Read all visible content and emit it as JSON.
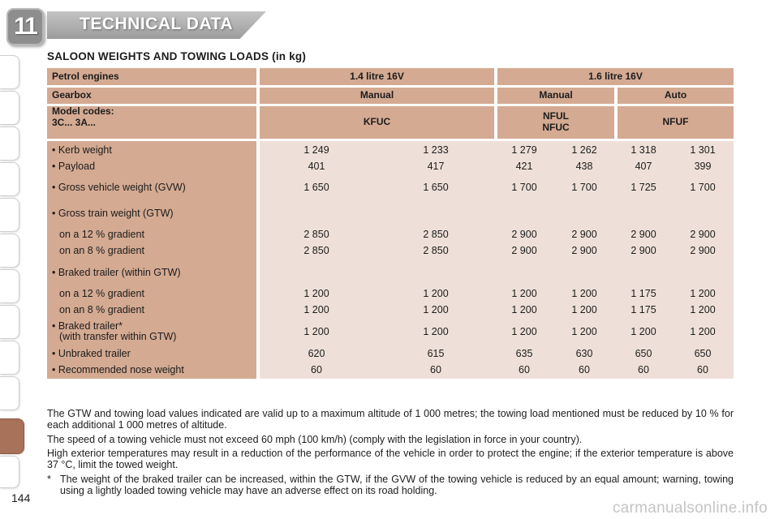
{
  "header": {
    "chapter_number": "11",
    "chapter_title": "TECHNICAL DATA"
  },
  "section_title": "SALOON WEIGHTS AND TOWING LOADS (in kg)",
  "table": {
    "engine_row": {
      "label": "Petrol engines",
      "col1": "1.4 litre 16V",
      "col2": "1.6 litre 16V"
    },
    "gearbox_row": {
      "label": "Gearbox",
      "col1": "Manual",
      "col2": "Manual",
      "col3": "Auto"
    },
    "model_row": {
      "label_line1": "Model codes:",
      "label_line2": "3C...  3A...",
      "col1": "KFUC",
      "col2_line1": "NFUL",
      "col2_line2": "NFUC",
      "col3": "NFUF"
    },
    "rows": [
      {
        "label": "• Kerb weight",
        "values": [
          "1 249",
          "1 233",
          "1 279",
          "1 262",
          "1 318",
          "1 301"
        ]
      },
      {
        "label": "• Payload",
        "values": [
          "401",
          "417",
          "421",
          "438",
          "407",
          "399"
        ]
      },
      {
        "label": "• Gross vehicle weight (GVW)",
        "values": [
          "1 650",
          "1 650",
          "1 700",
          "1 700",
          "1 725",
          "1 700"
        ]
      },
      {
        "label": "• Gross train weight (GTW)",
        "values": []
      },
      {
        "label": "on a 12 % gradient",
        "values": [
          "2 850",
          "2 850",
          "2 900",
          "2 900",
          "2 900",
          "2 900"
        ]
      },
      {
        "label": "on an 8 % gradient",
        "values": [
          "2 850",
          "2 850",
          "2 900",
          "2 900",
          "2 900",
          "2 900"
        ]
      },
      {
        "label": "• Braked trailer (within GTW)",
        "values": []
      },
      {
        "label": "on a 12 % gradient",
        "values": [
          "1 200",
          "1 200",
          "1 200",
          "1 200",
          "1 175",
          "1 200"
        ]
      },
      {
        "label": "on an 8 % gradient",
        "values": [
          "1 200",
          "1 200",
          "1 200",
          "1 200",
          "1 175",
          "1 200"
        ]
      },
      {
        "label": "• Braked trailer*",
        "label2": "(with transfer within GTW)",
        "values": [
          "1 200",
          "1 200",
          "1 200",
          "1 200",
          "1 200",
          "1 200"
        ]
      },
      {
        "label": "• Unbraked trailer",
        "values": [
          "620",
          "615",
          "635",
          "630",
          "650",
          "650"
        ]
      },
      {
        "label": "• Recommended nose weight",
        "values": [
          "60",
          "60",
          "60",
          "60",
          "60",
          "60"
        ]
      }
    ]
  },
  "notes": {
    "p1": "The GTW and towing load values indicated are valid up to a maximum altitude of 1 000 metres; the towing load mentioned must be reduced by 10 % for each additional 1 000 metres of altitude.",
    "p2": "The speed of a towing vehicle must not exceed 60 mph (100 km/h) (comply with the legislation in force in your country).",
    "p3": "High exterior temperatures may result in a reduction of the performance of the vehicle in order to protect the engine; if the exterior temperature is above 37 °C, limit the towed weight.",
    "footnote_mark": "*",
    "footnote": "The weight of the braked trailer can be increased, within the GTW, if the GVW of the towing vehicle is reduced by an equal amount; warning, towing using a lightly loaded towing vehicle may have an adverse effect on its road holding."
  },
  "page_number": "144",
  "watermark": "carmanualsonline.info",
  "colors": {
    "header_cell": "#d4aa92",
    "body_cell": "#eee0d8",
    "active_tab": "#a8725a",
    "badge": "#8e8e8e"
  }
}
